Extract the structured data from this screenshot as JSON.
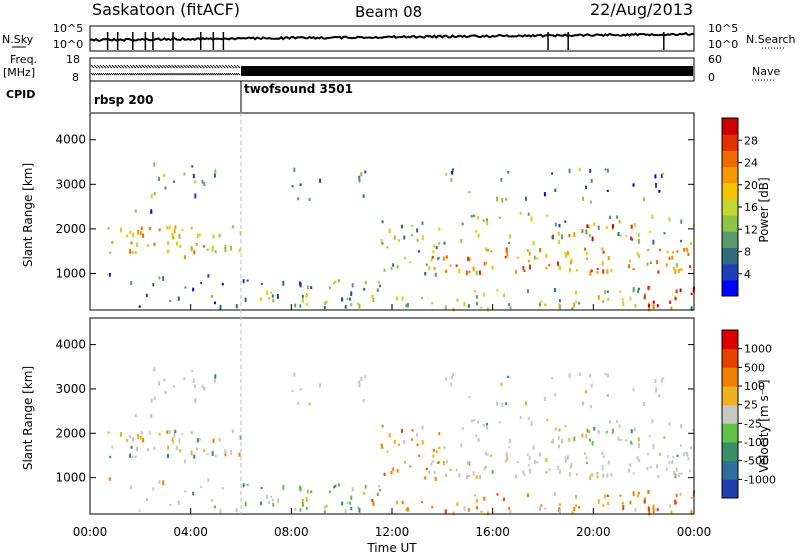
{
  "header": {
    "radar": "Saskatoon (fitACF)",
    "beam": "Beam 08",
    "date": "22/Aug/2013"
  },
  "strip": {
    "nsky_label": "N.Sky",
    "freq_label_1": "Freq.",
    "freq_label_2": "[MHz]",
    "cpid_label": "CPID",
    "nsearch_label": "N.Search",
    "nave_label": "Nave",
    "noise_ticks_left": [
      "10^5",
      "10^0"
    ],
    "noise_ticks_right": [
      "10^5",
      "10^0"
    ],
    "freq_ticks": [
      "18",
      "8"
    ],
    "nave_ticks": [
      "60",
      "0"
    ],
    "cpid": [
      {
        "name": "rbsp 200",
        "start_hour": 0
      },
      {
        "name": "twofsound 3501",
        "start_hour": 6
      }
    ]
  },
  "chart_data": [
    {
      "type": "heatmap",
      "quantity": "Power",
      "ylabel": "Slant Range [km]",
      "xlim_hours": [
        0,
        24
      ],
      "ylim_km": [
        180,
        4600
      ],
      "y_ticks": [
        1000,
        2000,
        3000,
        4000
      ],
      "colorbar": {
        "label": "Power [dB]",
        "ticks": [
          "28",
          "24",
          "20",
          "16",
          "12",
          "8",
          "4"
        ],
        "colors": [
          "#0000ff",
          "#1f3fb5",
          "#2f6e7a",
          "#5a9a6a",
          "#8ec44a",
          "#c2d630",
          "#f5c400",
          "#f59a00",
          "#f06a00",
          "#e23000",
          "#cc0000"
        ]
      }
    },
    {
      "type": "heatmap",
      "quantity": "Velocity",
      "xlabel": "Time UT",
      "ylabel": "Slant Range [km]",
      "xlim_hours": [
        0,
        24
      ],
      "ylim_km": [
        180,
        4600
      ],
      "y_ticks": [
        1000,
        2000,
        3000,
        4000
      ],
      "x_ticks": [
        "00:00",
        "04:00",
        "08:00",
        "12:00",
        "16:00",
        "20:00",
        "00:00"
      ],
      "colorbar": {
        "label": "Velocity [m s⁻¹]",
        "ticks": [
          "1000",
          "500",
          "100",
          "25",
          "-25",
          "-100",
          "-500",
          "-1000"
        ],
        "colors": [
          "#2040b0",
          "#2f6fa0",
          "#3a8f6a",
          "#5fc04a",
          "#c8c8c0",
          "#f0b020",
          "#f08000",
          "#e84000",
          "#dd0000"
        ]
      }
    }
  ],
  "scatter_regions": [
    {
      "comment_free": true,
      "t0": 0.2,
      "t1": 6.0,
      "r0": 1400,
      "r1": 2100,
      "power_mean": 18,
      "vel": "lowneg",
      "density": 0.65
    },
    {
      "t0": 2.4,
      "t1": 5.0,
      "r0": 2700,
      "r1": 3500,
      "power_mean": 8,
      "vel": "grey",
      "density": 0.35
    },
    {
      "t0": 0.8,
      "t1": 3.0,
      "r0": 2400,
      "r1": 3100,
      "power_mean": 6,
      "vel": "grey",
      "density": 0.1
    },
    {
      "t0": 0.5,
      "t1": 6.0,
      "r0": 200,
      "r1": 1100,
      "power_mean": 6,
      "vel": "lowneg",
      "density": 0.18
    },
    {
      "t0": 6.0,
      "t1": 11.5,
      "r0": 250,
      "r1": 900,
      "power_mean": 10,
      "vel": "pos",
      "density": 0.6
    },
    {
      "t0": 8.0,
      "t1": 11.0,
      "r0": 2600,
      "r1": 3400,
      "power_mean": 6,
      "vel": "grey",
      "density": 0.22
    },
    {
      "t0": 11.5,
      "t1": 14.0,
      "r0": 1000,
      "r1": 2300,
      "power_mean": 12,
      "vel": "neg",
      "density": 0.5
    },
    {
      "t0": 13.5,
      "t1": 24.0,
      "r0": 1050,
      "r1": 1600,
      "power_mean": 20,
      "vel": "grey",
      "density": 0.8
    },
    {
      "t0": 14.0,
      "t1": 24.0,
      "r0": 1700,
      "r1": 2400,
      "power_mean": 12,
      "vel": "grey",
      "density": 0.35
    },
    {
      "t0": 14.0,
      "t1": 23.0,
      "r0": 2600,
      "r1": 3400,
      "power_mean": 8,
      "vel": "grey",
      "density": 0.22
    },
    {
      "t0": 11.0,
      "t1": 24.0,
      "r0": 220,
      "r1": 700,
      "power_mean": 14,
      "vel": "neg",
      "density": 0.45
    },
    {
      "t0": 22.0,
      "t1": 24.0,
      "r0": 250,
      "r1": 800,
      "power_mean": 26,
      "vel": "neg",
      "density": 0.7
    },
    {
      "t0": 19.0,
      "t1": 21.5,
      "r0": 1800,
      "r1": 2200,
      "power_mean": 22,
      "vel": "pos",
      "density": 0.6
    }
  ]
}
